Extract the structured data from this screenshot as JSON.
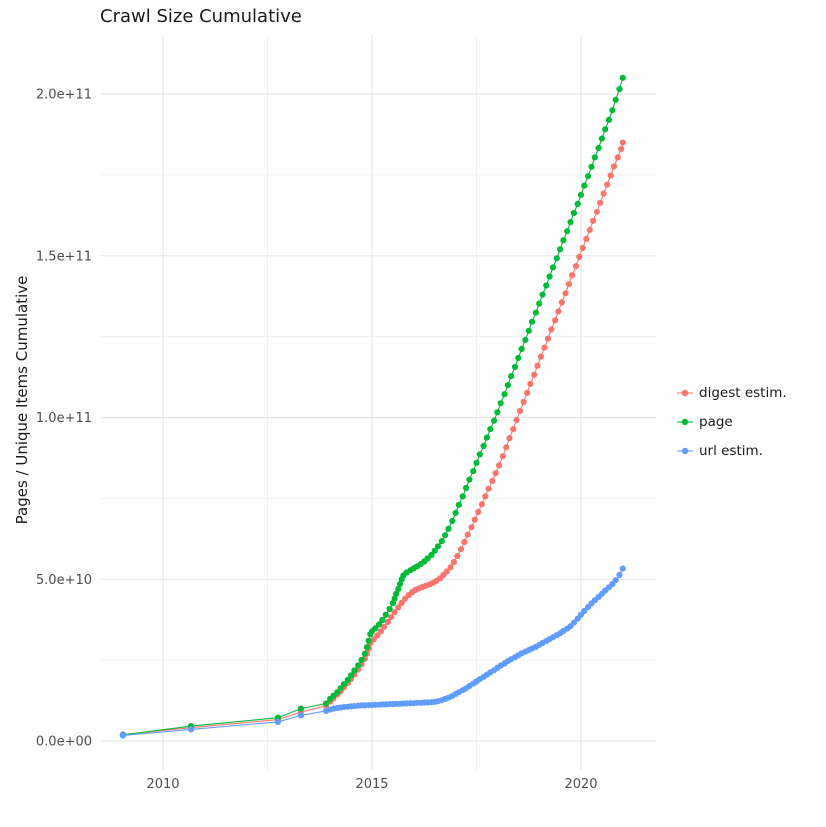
{
  "background_color": "#FFFFFF",
  "chart_data": {
    "type": "scatter-line",
    "title": "Crawl Size Cumulative",
    "xlabel": "",
    "ylabel": "Pages / Unique Items Cumulative",
    "grid": true,
    "legend_position": "right",
    "xlim": [
      2008.5,
      2021.8
    ],
    "ylim_e9": [
      -4,
      215
    ],
    "y_value_unit": "1e9 (points stored in billions)",
    "x_ticks": [
      {
        "v": 2010,
        "label": "2010"
      },
      {
        "v": 2015,
        "label": "2015"
      },
      {
        "v": 2020,
        "label": "2020"
      }
    ],
    "y_ticks": [
      {
        "v": 0,
        "label": "0.0e+00"
      },
      {
        "v": 50,
        "label": "5.0e+10"
      },
      {
        "v": 100,
        "label": "1.0e+11"
      },
      {
        "v": 150,
        "label": "1.5e+11"
      },
      {
        "v": 200,
        "label": "2.0e+11"
      }
    ],
    "x_minor": [
      2012.5,
      2017.5
    ],
    "y_minor": [
      25,
      75,
      125,
      175
    ],
    "series": [
      {
        "name": "digest estim.",
        "color": "#F8766D",
        "points": [
          [
            2009.04,
            2.0
          ],
          [
            2010.67,
            4.1
          ],
          [
            2012.75,
            6.6
          ],
          [
            2013.3,
            8.9
          ],
          [
            2013.9,
            10.9
          ],
          [
            2014.0,
            12.2
          ],
          [
            2014.08,
            13.2
          ],
          [
            2014.17,
            14.3
          ],
          [
            2014.25,
            15.4
          ],
          [
            2014.33,
            16.6
          ],
          [
            2014.42,
            17.9
          ],
          [
            2014.5,
            19.2
          ],
          [
            2014.58,
            20.6
          ],
          [
            2014.67,
            22.1
          ],
          [
            2014.75,
            23.7
          ],
          [
            2014.83,
            25.4
          ],
          [
            2014.88,
            27.0
          ],
          [
            2014.92,
            28.6
          ],
          [
            2014.96,
            30.2
          ],
          [
            2015.04,
            31.4
          ],
          [
            2015.13,
            32.6
          ],
          [
            2015.21,
            33.9
          ],
          [
            2015.29,
            35.3
          ],
          [
            2015.38,
            36.8
          ],
          [
            2015.46,
            38.3
          ],
          [
            2015.54,
            39.8
          ],
          [
            2015.63,
            41.3
          ],
          [
            2015.71,
            42.7
          ],
          [
            2015.79,
            44.0
          ],
          [
            2015.88,
            45.1
          ],
          [
            2015.96,
            46.0
          ],
          [
            2016.04,
            46.7
          ],
          [
            2016.13,
            47.2
          ],
          [
            2016.21,
            47.6
          ],
          [
            2016.29,
            48.0
          ],
          [
            2016.38,
            48.4
          ],
          [
            2016.46,
            48.9
          ],
          [
            2016.54,
            49.5
          ],
          [
            2016.63,
            50.3
          ],
          [
            2016.71,
            51.3
          ],
          [
            2016.79,
            52.4
          ],
          [
            2016.88,
            53.7
          ],
          [
            2016.96,
            55.3
          ],
          [
            2017.04,
            57.2
          ],
          [
            2017.13,
            59.3
          ],
          [
            2017.21,
            61.5
          ],
          [
            2017.29,
            63.8
          ],
          [
            2017.38,
            66.1
          ],
          [
            2017.46,
            68.4
          ],
          [
            2017.54,
            70.8
          ],
          [
            2017.63,
            73.2
          ],
          [
            2017.71,
            75.6
          ],
          [
            2017.79,
            78.0
          ],
          [
            2017.88,
            80.4
          ],
          [
            2017.96,
            82.8
          ],
          [
            2018.04,
            85.2
          ],
          [
            2018.13,
            88.0
          ],
          [
            2018.21,
            90.8
          ],
          [
            2018.29,
            93.6
          ],
          [
            2018.38,
            96.4
          ],
          [
            2018.46,
            99.2
          ],
          [
            2018.54,
            102.0
          ],
          [
            2018.63,
            104.8
          ],
          [
            2018.71,
            107.6
          ],
          [
            2018.79,
            110.4
          ],
          [
            2018.88,
            113.2
          ],
          [
            2018.96,
            116.0
          ],
          [
            2019.04,
            118.8
          ],
          [
            2019.13,
            121.6
          ],
          [
            2019.21,
            124.4
          ],
          [
            2019.29,
            127.2
          ],
          [
            2019.38,
            130.0
          ],
          [
            2019.46,
            132.8
          ],
          [
            2019.54,
            135.6
          ],
          [
            2019.63,
            138.4
          ],
          [
            2019.71,
            141.2
          ],
          [
            2019.79,
            144.0
          ],
          [
            2019.88,
            146.8
          ],
          [
            2019.96,
            149.6
          ],
          [
            2020.04,
            152.4
          ],
          [
            2020.13,
            155.2
          ],
          [
            2020.21,
            158.0
          ],
          [
            2020.29,
            160.8
          ],
          [
            2020.38,
            163.6
          ],
          [
            2020.46,
            166.4
          ],
          [
            2020.54,
            169.2
          ],
          [
            2020.63,
            172.0
          ],
          [
            2020.71,
            174.8
          ],
          [
            2020.79,
            177.6
          ],
          [
            2020.88,
            180.4
          ],
          [
            2020.96,
            183.0
          ],
          [
            2021.0,
            185.0
          ]
        ]
      },
      {
        "name": "page",
        "color": "#00BA38",
        "points": [
          [
            2009.04,
            1.9
          ],
          [
            2010.67,
            4.6
          ],
          [
            2012.75,
            7.2
          ],
          [
            2013.3,
            10.0
          ],
          [
            2013.9,
            11.6
          ],
          [
            2014.0,
            13.0
          ],
          [
            2014.08,
            14.0
          ],
          [
            2014.17,
            15.1
          ],
          [
            2014.25,
            16.3
          ],
          [
            2014.33,
            17.6
          ],
          [
            2014.42,
            18.9
          ],
          [
            2014.5,
            20.3
          ],
          [
            2014.58,
            21.8
          ],
          [
            2014.67,
            23.4
          ],
          [
            2014.75,
            25.1
          ],
          [
            2014.83,
            27.0
          ],
          [
            2014.88,
            29.0
          ],
          [
            2014.92,
            31.0
          ],
          [
            2014.96,
            33.0
          ],
          [
            2015.0,
            33.9
          ],
          [
            2015.08,
            34.8
          ],
          [
            2015.17,
            36.0
          ],
          [
            2015.25,
            37.4
          ],
          [
            2015.33,
            39.0
          ],
          [
            2015.42,
            40.8
          ],
          [
            2015.5,
            42.6
          ],
          [
            2015.54,
            44.0
          ],
          [
            2015.58,
            45.5
          ],
          [
            2015.63,
            47.0
          ],
          [
            2015.67,
            48.5
          ],
          [
            2015.71,
            50.0
          ],
          [
            2015.75,
            51.2
          ],
          [
            2015.83,
            52.1
          ],
          [
            2015.92,
            52.8
          ],
          [
            2016.0,
            53.4
          ],
          [
            2016.08,
            54.0
          ],
          [
            2016.17,
            54.7
          ],
          [
            2016.25,
            55.5
          ],
          [
            2016.33,
            56.4
          ],
          [
            2016.42,
            57.5
          ],
          [
            2016.5,
            58.8
          ],
          [
            2016.58,
            60.2
          ],
          [
            2016.67,
            61.8
          ],
          [
            2016.75,
            63.6
          ],
          [
            2016.83,
            65.6
          ],
          [
            2016.92,
            68.0
          ],
          [
            2017.0,
            70.5
          ],
          [
            2017.08,
            73.0
          ],
          [
            2017.17,
            75.6
          ],
          [
            2017.25,
            78.2
          ],
          [
            2017.33,
            80.8
          ],
          [
            2017.42,
            83.4
          ],
          [
            2017.5,
            86.0
          ],
          [
            2017.58,
            88.6
          ],
          [
            2017.67,
            91.2
          ],
          [
            2017.75,
            93.8
          ],
          [
            2017.83,
            96.4
          ],
          [
            2017.92,
            99.0
          ],
          [
            2018.0,
            101.6
          ],
          [
            2018.08,
            104.4
          ],
          [
            2018.17,
            107.2
          ],
          [
            2018.25,
            110.0
          ],
          [
            2018.33,
            112.8
          ],
          [
            2018.42,
            115.6
          ],
          [
            2018.5,
            118.4
          ],
          [
            2018.58,
            121.2
          ],
          [
            2018.67,
            124.0
          ],
          [
            2018.75,
            126.8
          ],
          [
            2018.83,
            129.6
          ],
          [
            2018.92,
            132.4
          ],
          [
            2019.0,
            135.2
          ],
          [
            2019.08,
            138.0
          ],
          [
            2019.17,
            140.8
          ],
          [
            2019.25,
            143.6
          ],
          [
            2019.33,
            146.4
          ],
          [
            2019.42,
            149.2
          ],
          [
            2019.5,
            152.0
          ],
          [
            2019.58,
            154.8
          ],
          [
            2019.67,
            157.6
          ],
          [
            2019.75,
            160.4
          ],
          [
            2019.83,
            163.2
          ],
          [
            2019.92,
            166.0
          ],
          [
            2020.0,
            168.8
          ],
          [
            2020.08,
            171.7
          ],
          [
            2020.17,
            174.6
          ],
          [
            2020.25,
            177.5
          ],
          [
            2020.33,
            180.4
          ],
          [
            2020.42,
            183.3
          ],
          [
            2020.5,
            186.2
          ],
          [
            2020.58,
            189.1
          ],
          [
            2020.67,
            192.0
          ],
          [
            2020.75,
            195.0
          ],
          [
            2020.83,
            198.2
          ],
          [
            2020.92,
            201.5
          ],
          [
            2021.0,
            205.0
          ]
        ]
      },
      {
        "name": "url estim.",
        "color": "#619CFF",
        "points": [
          [
            2009.04,
            1.7
          ],
          [
            2010.67,
            3.6
          ],
          [
            2012.75,
            5.9
          ],
          [
            2013.3,
            7.9
          ],
          [
            2013.9,
            9.3
          ],
          [
            2014.0,
            9.7
          ],
          [
            2014.08,
            10.0
          ],
          [
            2014.17,
            10.2
          ],
          [
            2014.25,
            10.35
          ],
          [
            2014.33,
            10.5
          ],
          [
            2014.42,
            10.6
          ],
          [
            2014.5,
            10.7
          ],
          [
            2014.58,
            10.8
          ],
          [
            2014.67,
            10.9
          ],
          [
            2014.75,
            11.0
          ],
          [
            2014.83,
            11.0
          ],
          [
            2014.92,
            11.1
          ],
          [
            2015.0,
            11.1
          ],
          [
            2015.08,
            11.2
          ],
          [
            2015.17,
            11.2
          ],
          [
            2015.25,
            11.3
          ],
          [
            2015.33,
            11.3
          ],
          [
            2015.42,
            11.4
          ],
          [
            2015.5,
            11.4
          ],
          [
            2015.58,
            11.5
          ],
          [
            2015.67,
            11.5
          ],
          [
            2015.75,
            11.6
          ],
          [
            2015.83,
            11.6
          ],
          [
            2015.92,
            11.7
          ],
          [
            2016.0,
            11.7
          ],
          [
            2016.08,
            11.8
          ],
          [
            2016.17,
            11.8
          ],
          [
            2016.25,
            11.9
          ],
          [
            2016.33,
            11.9
          ],
          [
            2016.42,
            12.0
          ],
          [
            2016.5,
            12.1
          ],
          [
            2016.58,
            12.3
          ],
          [
            2016.67,
            12.6
          ],
          [
            2016.75,
            13.0
          ],
          [
            2016.83,
            13.4
          ],
          [
            2016.92,
            13.9
          ],
          [
            2017.0,
            14.5
          ],
          [
            2017.08,
            15.1
          ],
          [
            2017.17,
            15.7
          ],
          [
            2017.25,
            16.3
          ],
          [
            2017.33,
            17.0
          ],
          [
            2017.42,
            17.7
          ],
          [
            2017.5,
            18.4
          ],
          [
            2017.58,
            19.1
          ],
          [
            2017.67,
            19.8
          ],
          [
            2017.75,
            20.5
          ],
          [
            2017.83,
            21.2
          ],
          [
            2017.92,
            21.9
          ],
          [
            2018.0,
            22.6
          ],
          [
            2018.08,
            23.3
          ],
          [
            2018.17,
            24.0
          ],
          [
            2018.25,
            24.7
          ],
          [
            2018.33,
            25.3
          ],
          [
            2018.42,
            25.9
          ],
          [
            2018.5,
            26.5
          ],
          [
            2018.58,
            27.1
          ],
          [
            2018.67,
            27.6
          ],
          [
            2018.75,
            28.1
          ],
          [
            2018.83,
            28.6
          ],
          [
            2018.92,
            29.1
          ],
          [
            2019.0,
            29.7
          ],
          [
            2019.08,
            30.3
          ],
          [
            2019.17,
            30.9
          ],
          [
            2019.25,
            31.5
          ],
          [
            2019.33,
            32.1
          ],
          [
            2019.42,
            32.7
          ],
          [
            2019.5,
            33.3
          ],
          [
            2019.58,
            34.0
          ],
          [
            2019.67,
            34.7
          ],
          [
            2019.75,
            35.5
          ],
          [
            2019.83,
            36.6
          ],
          [
            2019.92,
            37.8
          ],
          [
            2020.0,
            39.0
          ],
          [
            2020.08,
            40.2
          ],
          [
            2020.17,
            41.4
          ],
          [
            2020.25,
            42.5
          ],
          [
            2020.33,
            43.5
          ],
          [
            2020.42,
            44.5
          ],
          [
            2020.5,
            45.5
          ],
          [
            2020.58,
            46.5
          ],
          [
            2020.67,
            47.5
          ],
          [
            2020.75,
            48.5
          ],
          [
            2020.83,
            49.7
          ],
          [
            2020.92,
            51.3
          ],
          [
            2021.0,
            53.3
          ]
        ]
      }
    ]
  }
}
